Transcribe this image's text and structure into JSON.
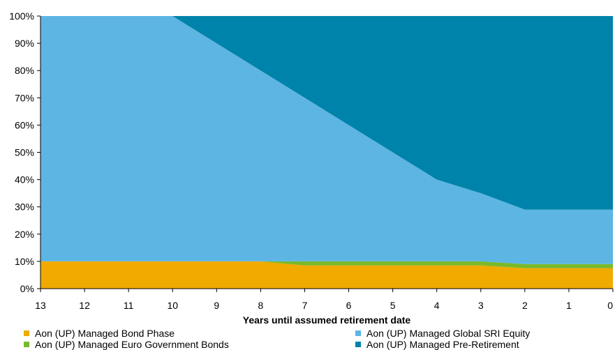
{
  "chart_data": {
    "type": "area",
    "stacked": true,
    "x": [
      13,
      12,
      11,
      10,
      9,
      8,
      7,
      6,
      5,
      4,
      3,
      2,
      1,
      0
    ],
    "xlabel": "Years until assumed retirement date",
    "ylabel": "",
    "ylim": [
      0,
      100
    ],
    "yticks": [
      "0%",
      "10%",
      "20%",
      "30%",
      "40%",
      "50%",
      "60%",
      "70%",
      "80%",
      "90%",
      "100%"
    ],
    "grid": false,
    "legend_position": "bottom",
    "series": [
      {
        "name": "Aon (UP) Managed Bond Phase",
        "color": "#f0aa00",
        "values": [
          10,
          10,
          10,
          10,
          10,
          10,
          8.5,
          8.5,
          8.5,
          8.5,
          8.5,
          7.5,
          7.5,
          7.5
        ]
      },
      {
        "name": "Aon (UP) Managed Euro Government Bonds",
        "color": "#7ab929",
        "values": [
          0,
          0,
          0,
          0,
          0,
          0,
          1.5,
          1.5,
          1.5,
          1.5,
          1.5,
          1.5,
          1.5,
          1.5
        ]
      },
      {
        "name": "Aon (UP) Managed Global SRI Equity",
        "color": "#5db5e3",
        "values": [
          90,
          90,
          90,
          90,
          80,
          70,
          60,
          50,
          40,
          30,
          25,
          20,
          20,
          20
        ]
      },
      {
        "name": "Aon (UP) Managed Pre-Retirement",
        "color": "#0083aa",
        "values": [
          0,
          0,
          0,
          0,
          10,
          20,
          30,
          40,
          50,
          60,
          65,
          71,
          71,
          71
        ]
      }
    ]
  }
}
